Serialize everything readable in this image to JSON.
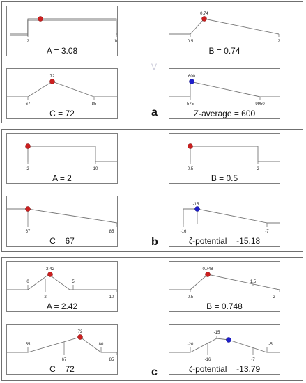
{
  "sections": [
    {
      "label": "a",
      "panels": [
        {
          "caption": "A = 3.08",
          "x": [
            2,
            10
          ],
          "x_labels": [
            "2",
            "10"
          ],
          "point": {
            "label": "",
            "color": "#cc1f1f"
          }
        },
        {
          "caption": "B = 0.74",
          "x": [
            0.5,
            0.74,
            2
          ],
          "x_labels": [
            "0.5",
            "2"
          ],
          "point": {
            "label": "0.74",
            "color": "#cc1f1f"
          }
        },
        {
          "caption": "C = 72",
          "x": [
            67,
            72,
            85
          ],
          "x_labels": [
            "67",
            "85"
          ],
          "point": {
            "label": "72",
            "color": "#cc1f1f"
          }
        },
        {
          "caption": "Z-average = 600",
          "x": [
            575,
            600,
            9950
          ],
          "x_labels": [
            "575",
            "9950"
          ],
          "point": {
            "label": "600",
            "color": "#1f1fcc"
          }
        }
      ]
    },
    {
      "label": "b",
      "panels": [
        {
          "caption": "A = 2",
          "x": [
            2,
            10
          ],
          "x_labels": [
            "2",
            "10"
          ],
          "point": {
            "label": "",
            "color": "#cc1f1f"
          }
        },
        {
          "caption": "B = 0.5",
          "x": [
            0.5,
            2
          ],
          "x_labels": [
            "0.5",
            "2"
          ],
          "point": {
            "label": "",
            "color": "#cc1f1f"
          }
        },
        {
          "caption": "C = 67",
          "x": [
            67,
            85
          ],
          "x_labels": [
            "67",
            "85"
          ],
          "point": {
            "label": "",
            "color": "#cc1f1f"
          }
        },
        {
          "caption": "ζ-potential = -15.18",
          "x": [
            -16,
            -15.18,
            -7
          ],
          "x_labels": [
            "-16",
            "-7"
          ],
          "point": {
            "label": "-15",
            "color": "#1f1fcc"
          }
        }
      ]
    },
    {
      "label": "c",
      "panels": [
        {
          "caption": "A = 2.42",
          "x": [
            0,
            2,
            2.42,
            5,
            10
          ],
          "x_labels": [
            "0",
            "2",
            "5",
            "10"
          ],
          "point": {
            "label": "2.42",
            "color": "#cc1f1f"
          }
        },
        {
          "caption": "B = 0.748",
          "x": [
            0.5,
            0.748,
            1.5,
            2
          ],
          "x_labels": [
            "0.5",
            "1.5",
            "2"
          ],
          "point": {
            "label": "0.748",
            "color": "#cc1f1f"
          }
        },
        {
          "caption": "C = 72",
          "x": [
            55,
            67,
            72,
            80,
            85
          ],
          "x_labels": [
            "55",
            "67",
            "80",
            "85"
          ],
          "point": {
            "label": "72",
            "color": "#cc1f1f"
          }
        },
        {
          "caption": "ζ-potential = -13.79",
          "x": [
            -20,
            -16,
            -15,
            -13.79,
            -7,
            -5
          ],
          "x_labels": [
            "-20",
            "-16",
            "-15",
            "-7",
            "-5"
          ],
          "point": {
            "label": "",
            "color": "#1f1fcc"
          }
        }
      ]
    }
  ]
}
